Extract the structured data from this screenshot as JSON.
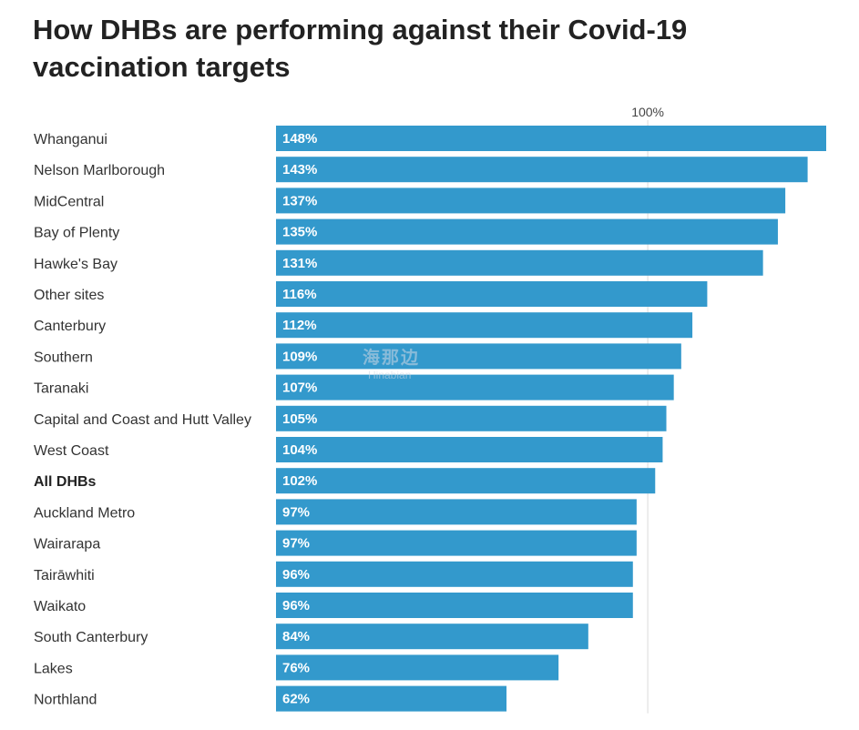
{
  "chart_data": {
    "type": "bar",
    "orientation": "horizontal",
    "title": "How DHBs are performing against their Covid-19 vaccination targets",
    "reference_line": {
      "value": 100,
      "label": "100%"
    },
    "xlim": [
      0,
      148
    ],
    "bar_color": "#3399cc",
    "grid_color": "#e0e0e0",
    "categories": [
      "Whanganui",
      "Nelson Marlborough",
      "MidCentral",
      "Bay of Plenty",
      "Hawke's Bay",
      "Other sites",
      "Canterbury",
      "Southern",
      "Taranaki",
      "Capital and Coast and Hutt Valley",
      "West Coast",
      "All DHBs",
      "Auckland Metro",
      "Wairarapa",
      "Tairāwhiti",
      "Waikato",
      "South Canterbury",
      "Lakes",
      "Northland"
    ],
    "values": [
      148,
      143,
      137,
      135,
      131,
      116,
      112,
      109,
      107,
      105,
      104,
      102,
      97,
      97,
      96,
      96,
      84,
      76,
      62
    ],
    "value_labels": [
      "148%",
      "143%",
      "137%",
      "135%",
      "131%",
      "116%",
      "112%",
      "109%",
      "107%",
      "105%",
      "104%",
      "102%",
      "97%",
      "97%",
      "96%",
      "96%",
      "84%",
      "76%",
      "62%"
    ],
    "bold_categories": [
      "All DHBs"
    ]
  },
  "watermark": {
    "chinese": "海那边",
    "latin": "Hinabian"
  }
}
